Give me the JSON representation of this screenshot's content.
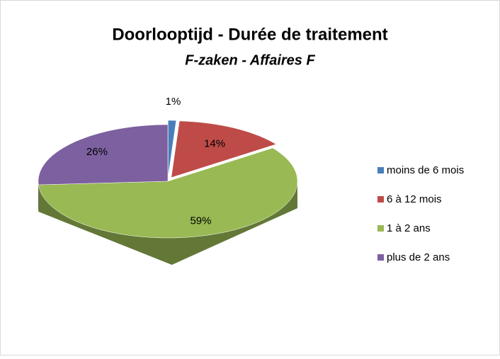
{
  "chart_data": {
    "type": "pie3d",
    "title": "Doorlooptijd - Durée de traitement",
    "subtitle": "F-zaken - Affaires F",
    "categories": [
      "moins de 6 mois",
      "6 à 12 mois",
      "1 à 2 ans",
      "plus de 2 ans"
    ],
    "values": [
      1,
      14,
      59,
      26
    ],
    "value_labels": [
      "1%",
      "14%",
      "59%",
      "26%"
    ],
    "colors": [
      "#4a7ebb",
      "#be4b48",
      "#98b954",
      "#7d60a0"
    ],
    "legend": "right"
  }
}
